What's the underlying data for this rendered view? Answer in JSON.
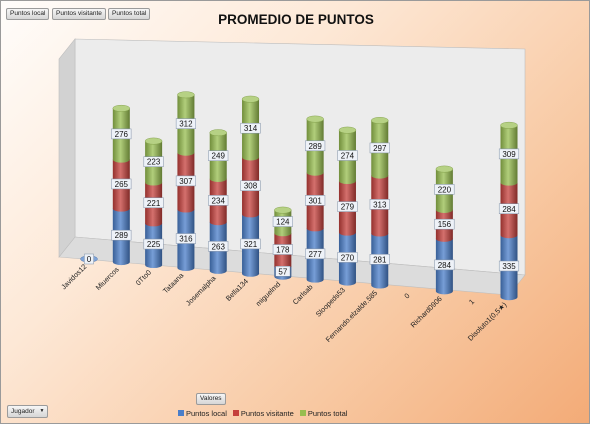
{
  "field_buttons": [
    "Puntos local",
    "Puntos visitante",
    "Puntos total"
  ],
  "valores_label": "Valores",
  "jugador_label": "Jugador",
  "jugador_arrow": "▼",
  "colors": {
    "local": "#4a7ec9",
    "visitante": "#c5403c",
    "total": "#97bd4f",
    "wall": "#ececec",
    "floor": "#dcdcdc"
  },
  "chart_data": {
    "type": "bar",
    "stacked": true,
    "3d": true,
    "title": "PROMEDIO DE PUNTOS",
    "categories": [
      "Javidos12",
      "Miuercos",
      "0Tto0",
      "Tataana",
      "Josemalpha",
      "Bella134",
      "miguelmd",
      "Carlsab",
      "Sloopeds53",
      "Fernando.elzalde.585",
      "0",
      "Richard0906",
      "1",
      "Disoluto1(0,5★)"
    ],
    "series": [
      {
        "name": "Puntos local",
        "values": [
          0,
          289,
          225,
          316,
          263,
          321,
          57,
          277,
          270,
          281,
          null,
          284,
          null,
          335
        ]
      },
      {
        "name": "Puntos visitante",
        "values": [
          null,
          265,
          221,
          307,
          234,
          308,
          178,
          301,
          279,
          313,
          null,
          156,
          null,
          284
        ]
      },
      {
        "name": "Puntos total",
        "values": [
          null,
          276,
          223,
          312,
          249,
          314,
          124,
          289,
          274,
          297,
          null,
          220,
          null,
          309
        ]
      }
    ],
    "legend": "bottom",
    "grid": false
  }
}
